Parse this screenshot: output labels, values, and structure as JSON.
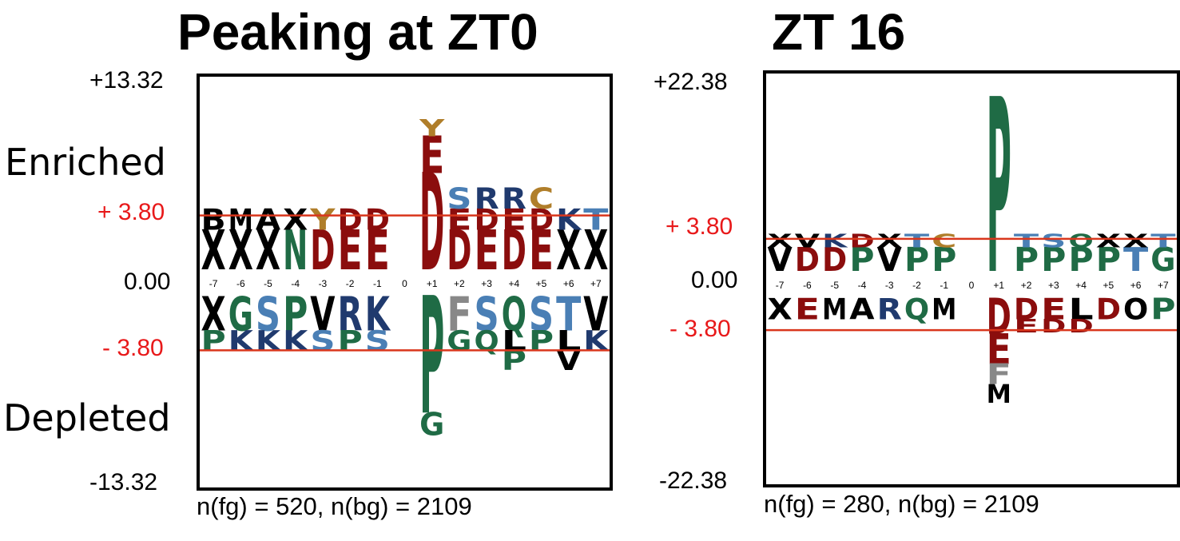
{
  "left_panel": {
    "title": "Peaking at ZT0",
    "label_enriched": "Enriched",
    "label_depleted": "Depleted",
    "y_top": "+13.32",
    "y_bottom": "-13.32",
    "y_zero": "0.00",
    "thr_pos": "+ 3.80",
    "thr_neg": "- 3.80",
    "caption": "n(fg) = 520, n(bg) = 2109"
  },
  "right_panel": {
    "title": "ZT 16",
    "y_top": "+22.38",
    "y_bottom": "-22.38",
    "y_zero": "0.00",
    "thr_pos": "+ 3.80",
    "thr_neg": "- 3.80",
    "caption": "n(fg) = 280, n(bg) = 2109"
  },
  "colors": {
    "acidic": "#8b0d0d",
    "basic": "#203a6e",
    "polar": "#1f6b45",
    "light_blue": "#4a7fb5",
    "hydrophobic": "#000000",
    "gold": "#b07e2a",
    "gray": "#888888",
    "threshold": "#d9361c"
  },
  "chart_data": [
    {
      "type": "sequence_logo",
      "title": "Peaking at ZT0",
      "positions": [
        "-7",
        "-6",
        "-5",
        "-4",
        "-3",
        "-2",
        "-1",
        "0",
        "+1",
        "+2",
        "+3",
        "+4",
        "+5",
        "+6",
        "+7"
      ],
      "ylim": [
        -13.32,
        13.32
      ],
      "threshold": 3.8,
      "enriched": [
        {
          "pos": "-7",
          "letters": [
            "X",
            "B"
          ]
        },
        {
          "pos": "-6",
          "letters": [
            "X",
            "M"
          ]
        },
        {
          "pos": "-5",
          "letters": [
            "X",
            "A"
          ]
        },
        {
          "pos": "-4",
          "letters": [
            "N",
            "X"
          ]
        },
        {
          "pos": "-3",
          "letters": [
            "D",
            "Y"
          ]
        },
        {
          "pos": "-2",
          "letters": [
            "E",
            "D"
          ]
        },
        {
          "pos": "-1",
          "letters": [
            "E",
            "D"
          ]
        },
        {
          "pos": "+1",
          "letters": [
            "D",
            "E",
            "Y"
          ]
        },
        {
          "pos": "+2",
          "letters": [
            "D",
            "E",
            "S"
          ]
        },
        {
          "pos": "+3",
          "letters": [
            "E",
            "D",
            "R"
          ]
        },
        {
          "pos": "+4",
          "letters": [
            "D",
            "E",
            "R"
          ]
        },
        {
          "pos": "+5",
          "letters": [
            "E",
            "D",
            "C"
          ]
        },
        {
          "pos": "+6",
          "letters": [
            "X",
            "K"
          ]
        },
        {
          "pos": "+7",
          "letters": [
            "X",
            "T"
          ]
        }
      ],
      "depleted": [
        {
          "pos": "-7",
          "letters": [
            "X",
            "P"
          ]
        },
        {
          "pos": "-6",
          "letters": [
            "G",
            "K"
          ]
        },
        {
          "pos": "-5",
          "letters": [
            "S",
            "K"
          ]
        },
        {
          "pos": "-4",
          "letters": [
            "P",
            "K"
          ]
        },
        {
          "pos": "-3",
          "letters": [
            "V",
            "S"
          ]
        },
        {
          "pos": "-2",
          "letters": [
            "R",
            "P"
          ]
        },
        {
          "pos": "-1",
          "letters": [
            "K",
            "S"
          ]
        },
        {
          "pos": "+1",
          "letters": [
            "P",
            "G"
          ]
        },
        {
          "pos": "+2",
          "letters": [
            "F",
            "G"
          ]
        },
        {
          "pos": "+3",
          "letters": [
            "S",
            "Q"
          ]
        },
        {
          "pos": "+4",
          "letters": [
            "Q",
            "L",
            "P"
          ]
        },
        {
          "pos": "+5",
          "letters": [
            "S",
            "P"
          ]
        },
        {
          "pos": "+6",
          "letters": [
            "T",
            "L",
            "V"
          ]
        },
        {
          "pos": "+7",
          "letters": [
            "V",
            "K"
          ]
        }
      ],
      "caption": "n(fg) = 520, n(bg) = 2109"
    },
    {
      "type": "sequence_logo",
      "title": "ZT 16",
      "positions": [
        "-7",
        "-6",
        "-5",
        "-4",
        "-3",
        "-2",
        "-1",
        "0",
        "+1",
        "+2",
        "+3",
        "+4",
        "+5",
        "+6",
        "+7"
      ],
      "ylim": [
        -22.38,
        22.38
      ],
      "threshold": 3.8,
      "enriched": [
        {
          "pos": "-7",
          "letters": [
            "V",
            "X"
          ]
        },
        {
          "pos": "-6",
          "letters": [
            "D",
            "V"
          ]
        },
        {
          "pos": "-5",
          "letters": [
            "D",
            "K"
          ]
        },
        {
          "pos": "-4",
          "letters": [
            "P",
            "D"
          ]
        },
        {
          "pos": "-3",
          "letters": [
            "V",
            "X"
          ]
        },
        {
          "pos": "-2",
          "letters": [
            "P",
            "T"
          ]
        },
        {
          "pos": "-1",
          "letters": [
            "P",
            "C"
          ]
        },
        {
          "pos": "+1",
          "letters": [
            "P"
          ]
        },
        {
          "pos": "+2",
          "letters": [
            "P",
            "T"
          ]
        },
        {
          "pos": "+3",
          "letters": [
            "P",
            "S"
          ]
        },
        {
          "pos": "+4",
          "letters": [
            "P",
            "Q"
          ]
        },
        {
          "pos": "+5",
          "letters": [
            "P",
            "X"
          ]
        },
        {
          "pos": "+6",
          "letters": [
            "T",
            "X"
          ]
        },
        {
          "pos": "+7",
          "letters": [
            "G",
            "T"
          ]
        }
      ],
      "depleted": [
        {
          "pos": "-7",
          "letters": [
            "X"
          ]
        },
        {
          "pos": "-6",
          "letters": [
            "E"
          ]
        },
        {
          "pos": "-5",
          "letters": [
            "M"
          ]
        },
        {
          "pos": "-4",
          "letters": [
            "A"
          ]
        },
        {
          "pos": "-3",
          "letters": [
            "R"
          ]
        },
        {
          "pos": "-2",
          "letters": [
            "Q"
          ]
        },
        {
          "pos": "-1",
          "letters": [
            "M"
          ]
        },
        {
          "pos": "+1",
          "letters": [
            "D",
            "E",
            "F",
            "M"
          ]
        },
        {
          "pos": "+2",
          "letters": [
            "D",
            "E"
          ]
        },
        {
          "pos": "+3",
          "letters": [
            "E",
            "D"
          ]
        },
        {
          "pos": "+4",
          "letters": [
            "L",
            "D"
          ]
        },
        {
          "pos": "+5",
          "letters": [
            "D"
          ]
        },
        {
          "pos": "+6",
          "letters": [
            "O"
          ]
        },
        {
          "pos": "+7",
          "letters": [
            "P"
          ]
        }
      ],
      "caption": "n(fg) = 280, n(bg) = 2109"
    }
  ]
}
